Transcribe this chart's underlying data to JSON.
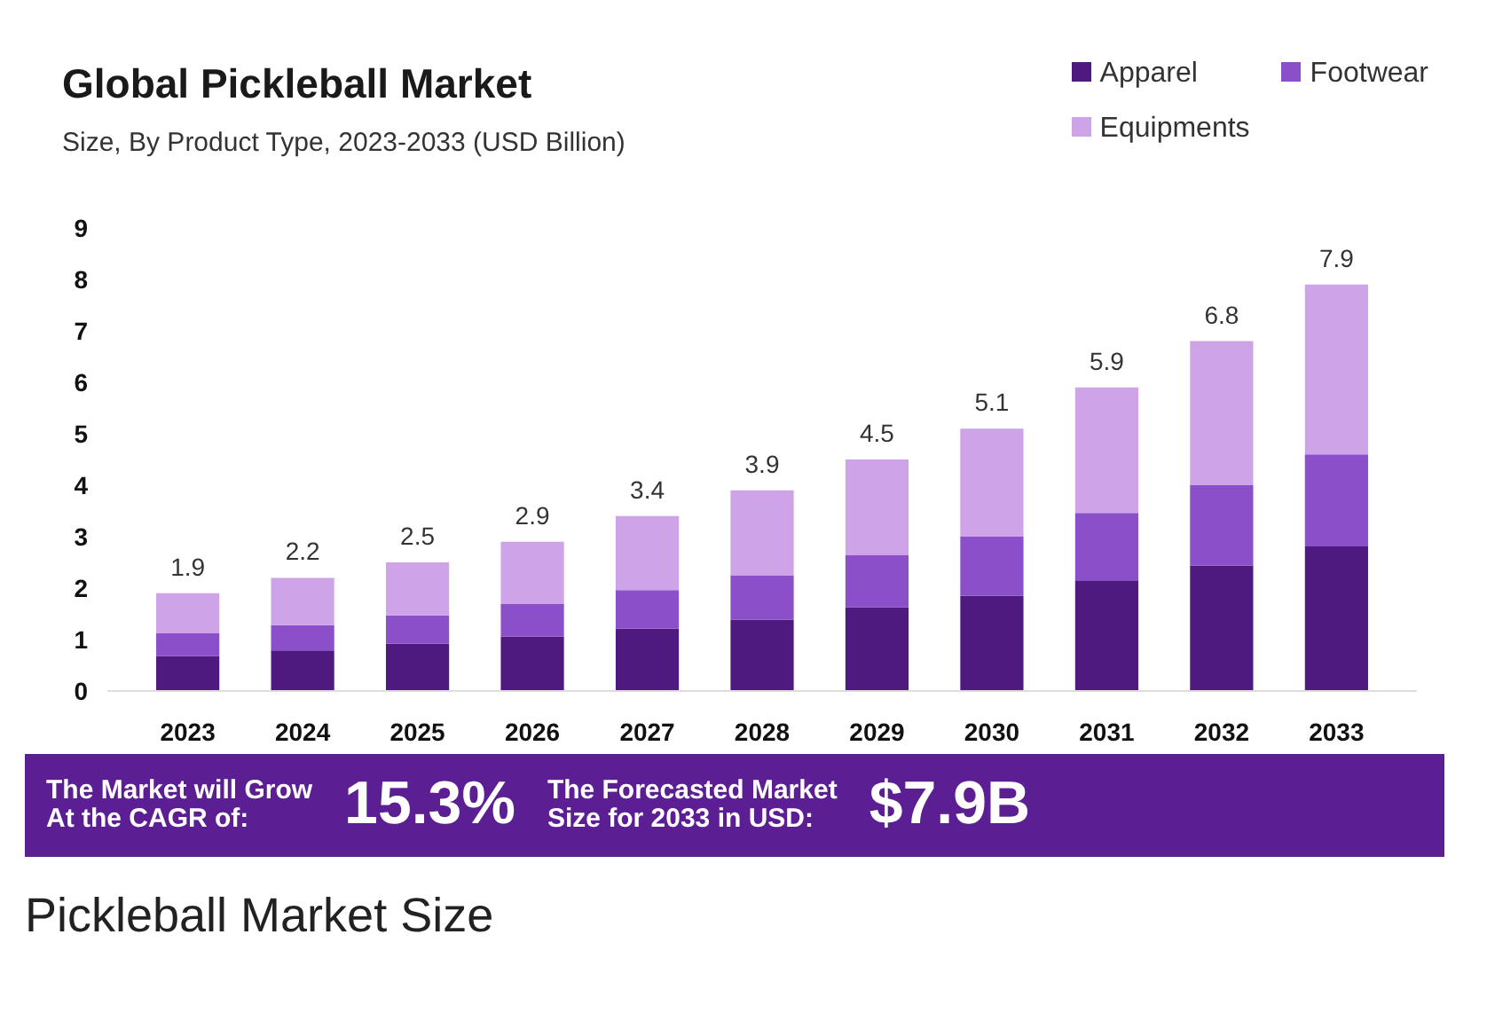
{
  "chart_data": {
    "type": "bar",
    "stacked": true,
    "title": "Global Pickleball Market",
    "subtitle": "Size, By Product Type, 2023-2033 (USD Billion)",
    "categories": [
      "2023",
      "2024",
      "2025",
      "2026",
      "2027",
      "2028",
      "2029",
      "2030",
      "2031",
      "2032",
      "2033"
    ],
    "series": [
      {
        "name": "Apparel",
        "color": "#4e1a80",
        "values": [
          0.68,
          0.79,
          0.92,
          1.06,
          1.21,
          1.39,
          1.63,
          1.85,
          2.15,
          2.44,
          2.81
        ]
      },
      {
        "name": "Footwear",
        "color": "#8a4fc9",
        "values": [
          0.44,
          0.49,
          0.55,
          0.64,
          0.75,
          0.86,
          1.01,
          1.15,
          1.31,
          1.57,
          1.79
        ]
      },
      {
        "name": "Equipments",
        "color": "#cfa3e8",
        "values": [
          0.78,
          0.92,
          1.03,
          1.2,
          1.44,
          1.65,
          1.86,
          2.1,
          2.44,
          2.79,
          3.3
        ]
      }
    ],
    "totals": [
      "1.9",
      "2.2",
      "2.5",
      "2.9",
      "3.4",
      "3.9",
      "4.5",
      "5.1",
      "5.9",
      "6.8",
      "7.9"
    ],
    "ylim": [
      0,
      9
    ],
    "yticks": [
      0,
      1,
      2,
      3,
      4,
      5,
      6,
      7,
      8,
      9
    ],
    "grid": false,
    "legend": "top right",
    "annotations": [
      "The Market will Grow\nAt the CAGR of:",
      "15.3%",
      "The Forecasted Market\nSize for 2033 in USD:",
      "$7.9B",
      "Pickleball Market Size"
    ]
  }
}
